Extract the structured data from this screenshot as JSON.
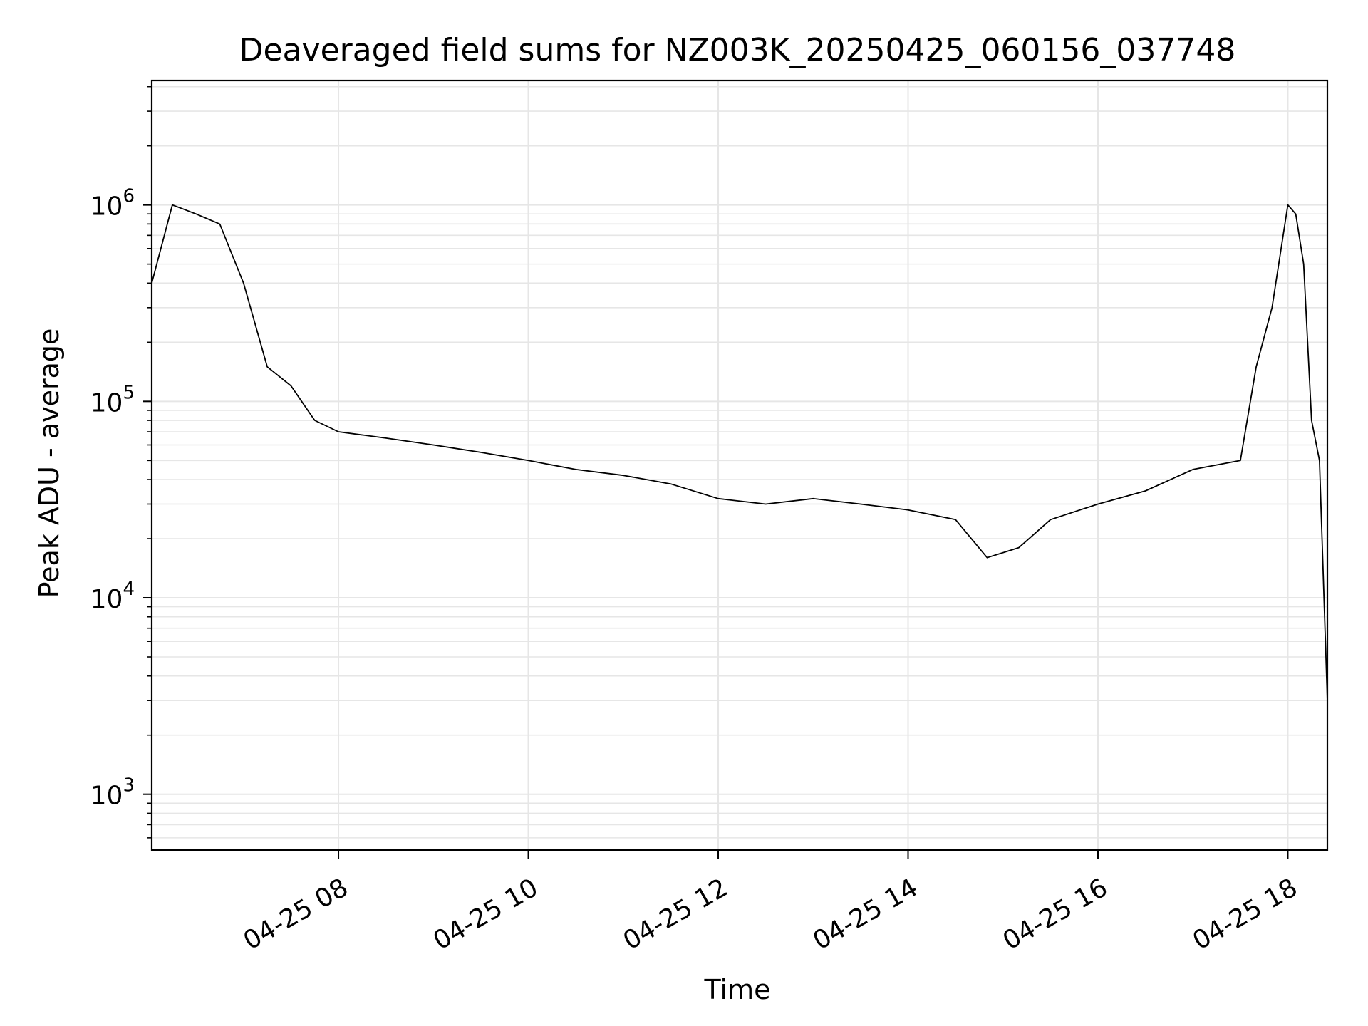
{
  "chart_data": {
    "type": "line",
    "title": "Deaveraged field sums for NZ003K_20250425_060156_037748",
    "xlabel": "Time",
    "ylabel": "Peak ADU - average",
    "yscale": "log",
    "ylim": [
      520,
      4300000
    ],
    "xlim": [
      "2025-04-25 06:02",
      "2025-04-25 18:25"
    ],
    "grid": true,
    "line_color": "#000000",
    "grid_color": "#e6e6e6",
    "x_ticks": [
      {
        "label": "04-25 08",
        "value": "2025-04-25 08:00"
      },
      {
        "label": "04-25 10",
        "value": "2025-04-25 10:00"
      },
      {
        "label": "04-25 12",
        "value": "2025-04-25 12:00"
      },
      {
        "label": "04-25 14",
        "value": "2025-04-25 14:00"
      },
      {
        "label": "04-25 16",
        "value": "2025-04-25 16:00"
      },
      {
        "label": "04-25 18",
        "value": "2025-04-25 18:00"
      }
    ],
    "y_ticks": [
      {
        "base": "10",
        "exp": "3",
        "value": 1000
      },
      {
        "base": "10",
        "exp": "4",
        "value": 10000
      },
      {
        "base": "10",
        "exp": "5",
        "value": 100000
      },
      {
        "base": "10",
        "exp": "6",
        "value": 1000000
      }
    ],
    "series": [
      {
        "x": [
          "2025-04-25 06:02",
          "2025-04-25 06:15",
          "2025-04-25 06:30",
          "2025-04-25 06:45",
          "2025-04-25 07:00",
          "2025-04-25 07:15",
          "2025-04-25 07:30",
          "2025-04-25 07:45",
          "2025-04-25 08:00",
          "2025-04-25 08:30",
          "2025-04-25 09:00",
          "2025-04-25 09:30",
          "2025-04-25 10:00",
          "2025-04-25 10:30",
          "2025-04-25 11:00",
          "2025-04-25 11:30",
          "2025-04-25 12:00",
          "2025-04-25 12:30",
          "2025-04-25 13:00",
          "2025-04-25 13:30",
          "2025-04-25 14:00",
          "2025-04-25 14:30",
          "2025-04-25 14:50",
          "2025-04-25 15:10",
          "2025-04-25 15:30",
          "2025-04-25 16:00",
          "2025-04-25 16:30",
          "2025-04-25 17:00",
          "2025-04-25 17:30",
          "2025-04-25 17:40",
          "2025-04-25 17:50",
          "2025-04-25 18:00",
          "2025-04-25 18:05",
          "2025-04-25 18:10",
          "2025-04-25 18:15",
          "2025-04-25 18:20",
          "2025-04-25 18:25"
        ],
        "y": [
          400000,
          1000000,
          900000,
          800000,
          400000,
          150000,
          120000,
          80000,
          70000,
          65000,
          60000,
          55000,
          50000,
          45000,
          42000,
          38000,
          32000,
          30000,
          32000,
          30000,
          28000,
          25000,
          16000,
          18000,
          25000,
          30000,
          35000,
          45000,
          50000,
          150000,
          300000,
          1000000,
          900000,
          500000,
          80000,
          50000,
          3000
        ]
      }
    ]
  }
}
